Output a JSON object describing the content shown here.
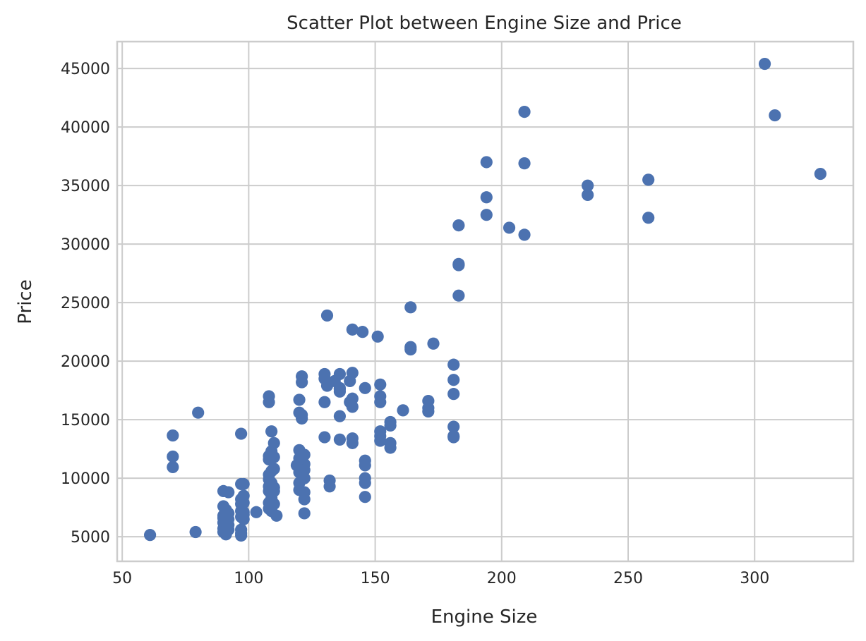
{
  "chart_data": {
    "type": "scatter",
    "title": "Scatter Plot between Engine Size and Price",
    "xlabel": "Engine Size",
    "ylabel": "Price",
    "xlim": [
      48,
      339
    ],
    "ylim": [
      2900,
      47300
    ],
    "xticks": [
      50,
      100,
      150,
      200,
      250,
      300
    ],
    "yticks": [
      5000,
      10000,
      15000,
      20000,
      25000,
      30000,
      35000,
      40000,
      45000
    ],
    "xtick_labels": [
      "50",
      "100",
      "150",
      "200",
      "250",
      "300"
    ],
    "ytick_labels": [
      "5000",
      "10000",
      "15000",
      "20000",
      "25000",
      "30000",
      "35000",
      "40000",
      "45000"
    ],
    "grid": true,
    "color": "#4c72b0",
    "x": [
      61,
      70,
      70,
      70,
      79,
      80,
      90,
      90,
      90,
      90,
      90,
      90,
      90,
      91,
      91,
      92,
      92,
      92,
      92,
      92,
      97,
      97,
      97,
      97,
      97,
      97,
      97,
      97,
      97,
      98,
      98,
      98,
      98,
      98,
      98,
      103,
      108,
      108,
      108,
      108,
      108,
      108,
      108,
      108,
      108,
      108,
      109,
      109,
      109,
      109,
      109,
      109,
      109,
      109,
      110,
      110,
      110,
      110,
      110,
      110,
      111,
      119,
      120,
      120,
      120,
      120,
      120,
      120,
      120,
      121,
      121,
      121,
      121,
      122,
      122,
      122,
      122,
      122,
      122,
      122,
      130,
      130,
      130,
      130,
      131,
      131,
      132,
      132,
      134,
      136,
      136,
      136,
      136,
      136,
      136,
      140,
      140,
      141,
      141,
      141,
      141,
      141,
      141,
      145,
      146,
      146,
      146,
      146,
      146,
      146,
      151,
      152,
      152,
      152,
      152,
      152,
      152,
      156,
      156,
      156,
      156,
      161,
      164,
      164,
      164,
      171,
      171,
      171,
      173,
      181,
      181,
      181,
      181,
      181,
      181,
      183,
      183,
      183,
      183,
      194,
      194,
      194,
      203,
      209,
      209,
      209,
      234,
      234,
      258,
      258,
      304,
      308,
      326
    ],
    "y": [
      5150,
      11850,
      10950,
      13650,
      5400,
      15600,
      8900,
      7600,
      6600,
      6200,
      5700,
      5400,
      6800,
      5200,
      7300,
      8800,
      7000,
      6500,
      6000,
      5600,
      9500,
      8200,
      7800,
      7200,
      6700,
      5300,
      5100,
      5600,
      13800,
      9500,
      8500,
      7900,
      7100,
      6500,
      6900,
      7100,
      17000,
      16500,
      11900,
      11600,
      10300,
      9900,
      9300,
      8900,
      7900,
      7400,
      14000,
      12300,
      10600,
      9600,
      8900,
      8300,
      7700,
      7200,
      13000,
      11800,
      10800,
      9200,
      8900,
      7800,
      6800,
      11100,
      16700,
      15600,
      12400,
      11700,
      10500,
      9600,
      9000,
      18700,
      18200,
      15100,
      15400,
      12000,
      11200,
      10700,
      10000,
      8800,
      8200,
      7000,
      18900,
      18500,
      16500,
      13500,
      23900,
      17900,
      9800,
      9300,
      18300,
      18900,
      17700,
      17400,
      15300,
      13300,
      17600,
      18300,
      16500,
      22700,
      19000,
      16800,
      16100,
      13400,
      13000,
      22500,
      17700,
      11500,
      11100,
      10000,
      9600,
      8400,
      22100,
      18000,
      17000,
      16500,
      14000,
      13600,
      13200,
      14800,
      14500,
      13000,
      12600,
      15800,
      24600,
      21200,
      21000,
      16600,
      16000,
      15700,
      21500,
      19700,
      18400,
      17200,
      14400,
      13600,
      13500,
      31600,
      28300,
      28200,
      25600,
      37000,
      34000,
      32500,
      31400,
      41300,
      36900,
      30800,
      35000,
      34200,
      35500,
      32250,
      45400,
      41000,
      36000
    ]
  }
}
